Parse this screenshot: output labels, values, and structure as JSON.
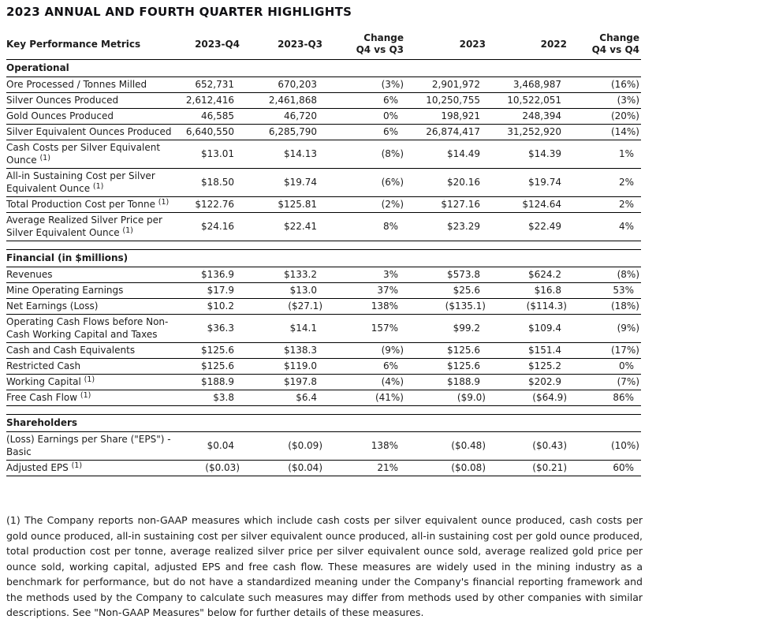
{
  "title": "2023 ANNUAL AND FOURTH QUARTER HIGHLIGHTS",
  "table": {
    "columns": [
      {
        "label": "Key Performance Metrics"
      },
      {
        "label": "2023-Q4"
      },
      {
        "label": "2023-Q3"
      },
      {
        "label": "Change",
        "label2": "Q4 vs Q3"
      },
      {
        "label": "2023"
      },
      {
        "label": "2022"
      },
      {
        "label": "Change",
        "label2": "Q4 vs Q4"
      }
    ],
    "sections": [
      {
        "heading": "Operational",
        "rows": [
          {
            "label": "Ore Processed / Tonnes Milled",
            "values": [
              "652,731",
              "670,203",
              "(3%)",
              "2,901,972",
              "3,468,987",
              "(16%)"
            ]
          },
          {
            "label": "Silver Ounces Produced",
            "values": [
              "2,612,416",
              "2,461,868",
              "6%",
              "10,250,755",
              "10,522,051",
              "(3%)"
            ]
          },
          {
            "label": "Gold Ounces Produced",
            "values": [
              "46,585",
              "46,720",
              "0%",
              "198,921",
              "248,394",
              "(20%)"
            ]
          },
          {
            "label": "Silver Equivalent Ounces Produced",
            "values": [
              "6,640,550",
              "6,285,790",
              "6%",
              "26,874,417",
              "31,252,920",
              "(14%)"
            ]
          },
          {
            "label": "Cash Costs per Silver Equivalent Ounce",
            "sup": "(1)",
            "values": [
              "$13.01",
              "$14.13",
              "(8%)",
              "$14.49",
              "$14.39",
              "1%"
            ]
          },
          {
            "label": "All-in Sustaining Cost per Silver Equivalent Ounce",
            "sup": "(1)",
            "values": [
              "$18.50",
              "$19.74",
              "(6%)",
              "$20.16",
              "$19.74",
              "2%"
            ]
          },
          {
            "label": "Total Production Cost per Tonne",
            "sup": "(1)",
            "values": [
              "$122.76",
              "$125.81",
              "(2%)",
              "$127.16",
              "$124.64",
              "2%"
            ]
          },
          {
            "label": "Average Realized Silver Price per Silver Equivalent Ounce",
            "sup": "(1)",
            "values": [
              "$24.16",
              "$22.41",
              "8%",
              "$23.29",
              "$22.49",
              "4%"
            ]
          }
        ]
      },
      {
        "heading": "Financial (in $millions)",
        "rows": [
          {
            "label": "Revenues",
            "values": [
              "$136.9",
              "$133.2",
              "3%",
              "$573.8",
              "$624.2",
              "(8%)"
            ]
          },
          {
            "label": "Mine Operating Earnings",
            "values": [
              "$17.9",
              "$13.0",
              "37%",
              "$25.6",
              "$16.8",
              "53%"
            ]
          },
          {
            "label": "Net Earnings (Loss)",
            "values": [
              "$10.2",
              "($27.1)",
              "138%",
              "($135.1)",
              "($114.3)",
              "(18%)"
            ]
          },
          {
            "label": "Operating Cash Flows before Non-Cash Working Capital and Taxes",
            "values": [
              "$36.3",
              "$14.1",
              "157%",
              "$99.2",
              "$109.4",
              "(9%)"
            ]
          },
          {
            "label": "Cash and Cash Equivalents",
            "values": [
              "$125.6",
              "$138.3",
              "(9%)",
              "$125.6",
              "$151.4",
              "(17%)"
            ]
          },
          {
            "label": "Restricted Cash",
            "values": [
              "$125.6",
              "$119.0",
              "6%",
              "$125.6",
              "$125.2",
              "0%"
            ]
          },
          {
            "label": "Working Capital",
            "sup": "(1)",
            "values": [
              "$188.9",
              "$197.8",
              "(4%)",
              "$188.9",
              "$202.9",
              "(7%)"
            ]
          },
          {
            "label": "Free Cash Flow",
            "sup": "(1)",
            "values": [
              "$3.8",
              "$6.4",
              "(41%)",
              "($9.0)",
              "($64.9)",
              "86%"
            ]
          }
        ]
      },
      {
        "heading": "Shareholders",
        "rows": [
          {
            "label": "(Loss) Earnings per Share (\"EPS\") - Basic",
            "values": [
              "$0.04",
              "($0.09)",
              "138%",
              "($0.48)",
              "($0.43)",
              "(10%)"
            ]
          },
          {
            "label": "Adjusted EPS",
            "sup": "(1)",
            "values": [
              "($0.03)",
              "($0.04)",
              "21%",
              "($0.08)",
              "($0.21)",
              "60%"
            ]
          }
        ]
      }
    ]
  },
  "footnote": "(1) The Company reports non-GAAP measures which include cash costs per silver equivalent ounce produced, cash costs per gold ounce produced, all-in sustaining cost per silver equivalent ounce produced, all-in sustaining cost per gold ounce produced, total production cost per tonne, average realized silver price per silver equivalent ounce sold, average realized gold price per ounce sold, working capital, adjusted EPS and free cash flow. These measures are widely used in the mining industry as a benchmark for performance, but do not have a standardized meaning under the Company's financial reporting framework and the methods used by the Company to calculate such measures may differ from methods used by other companies with similar descriptions. See \"Non-GAAP Measures\" below for further details of these measures."
}
